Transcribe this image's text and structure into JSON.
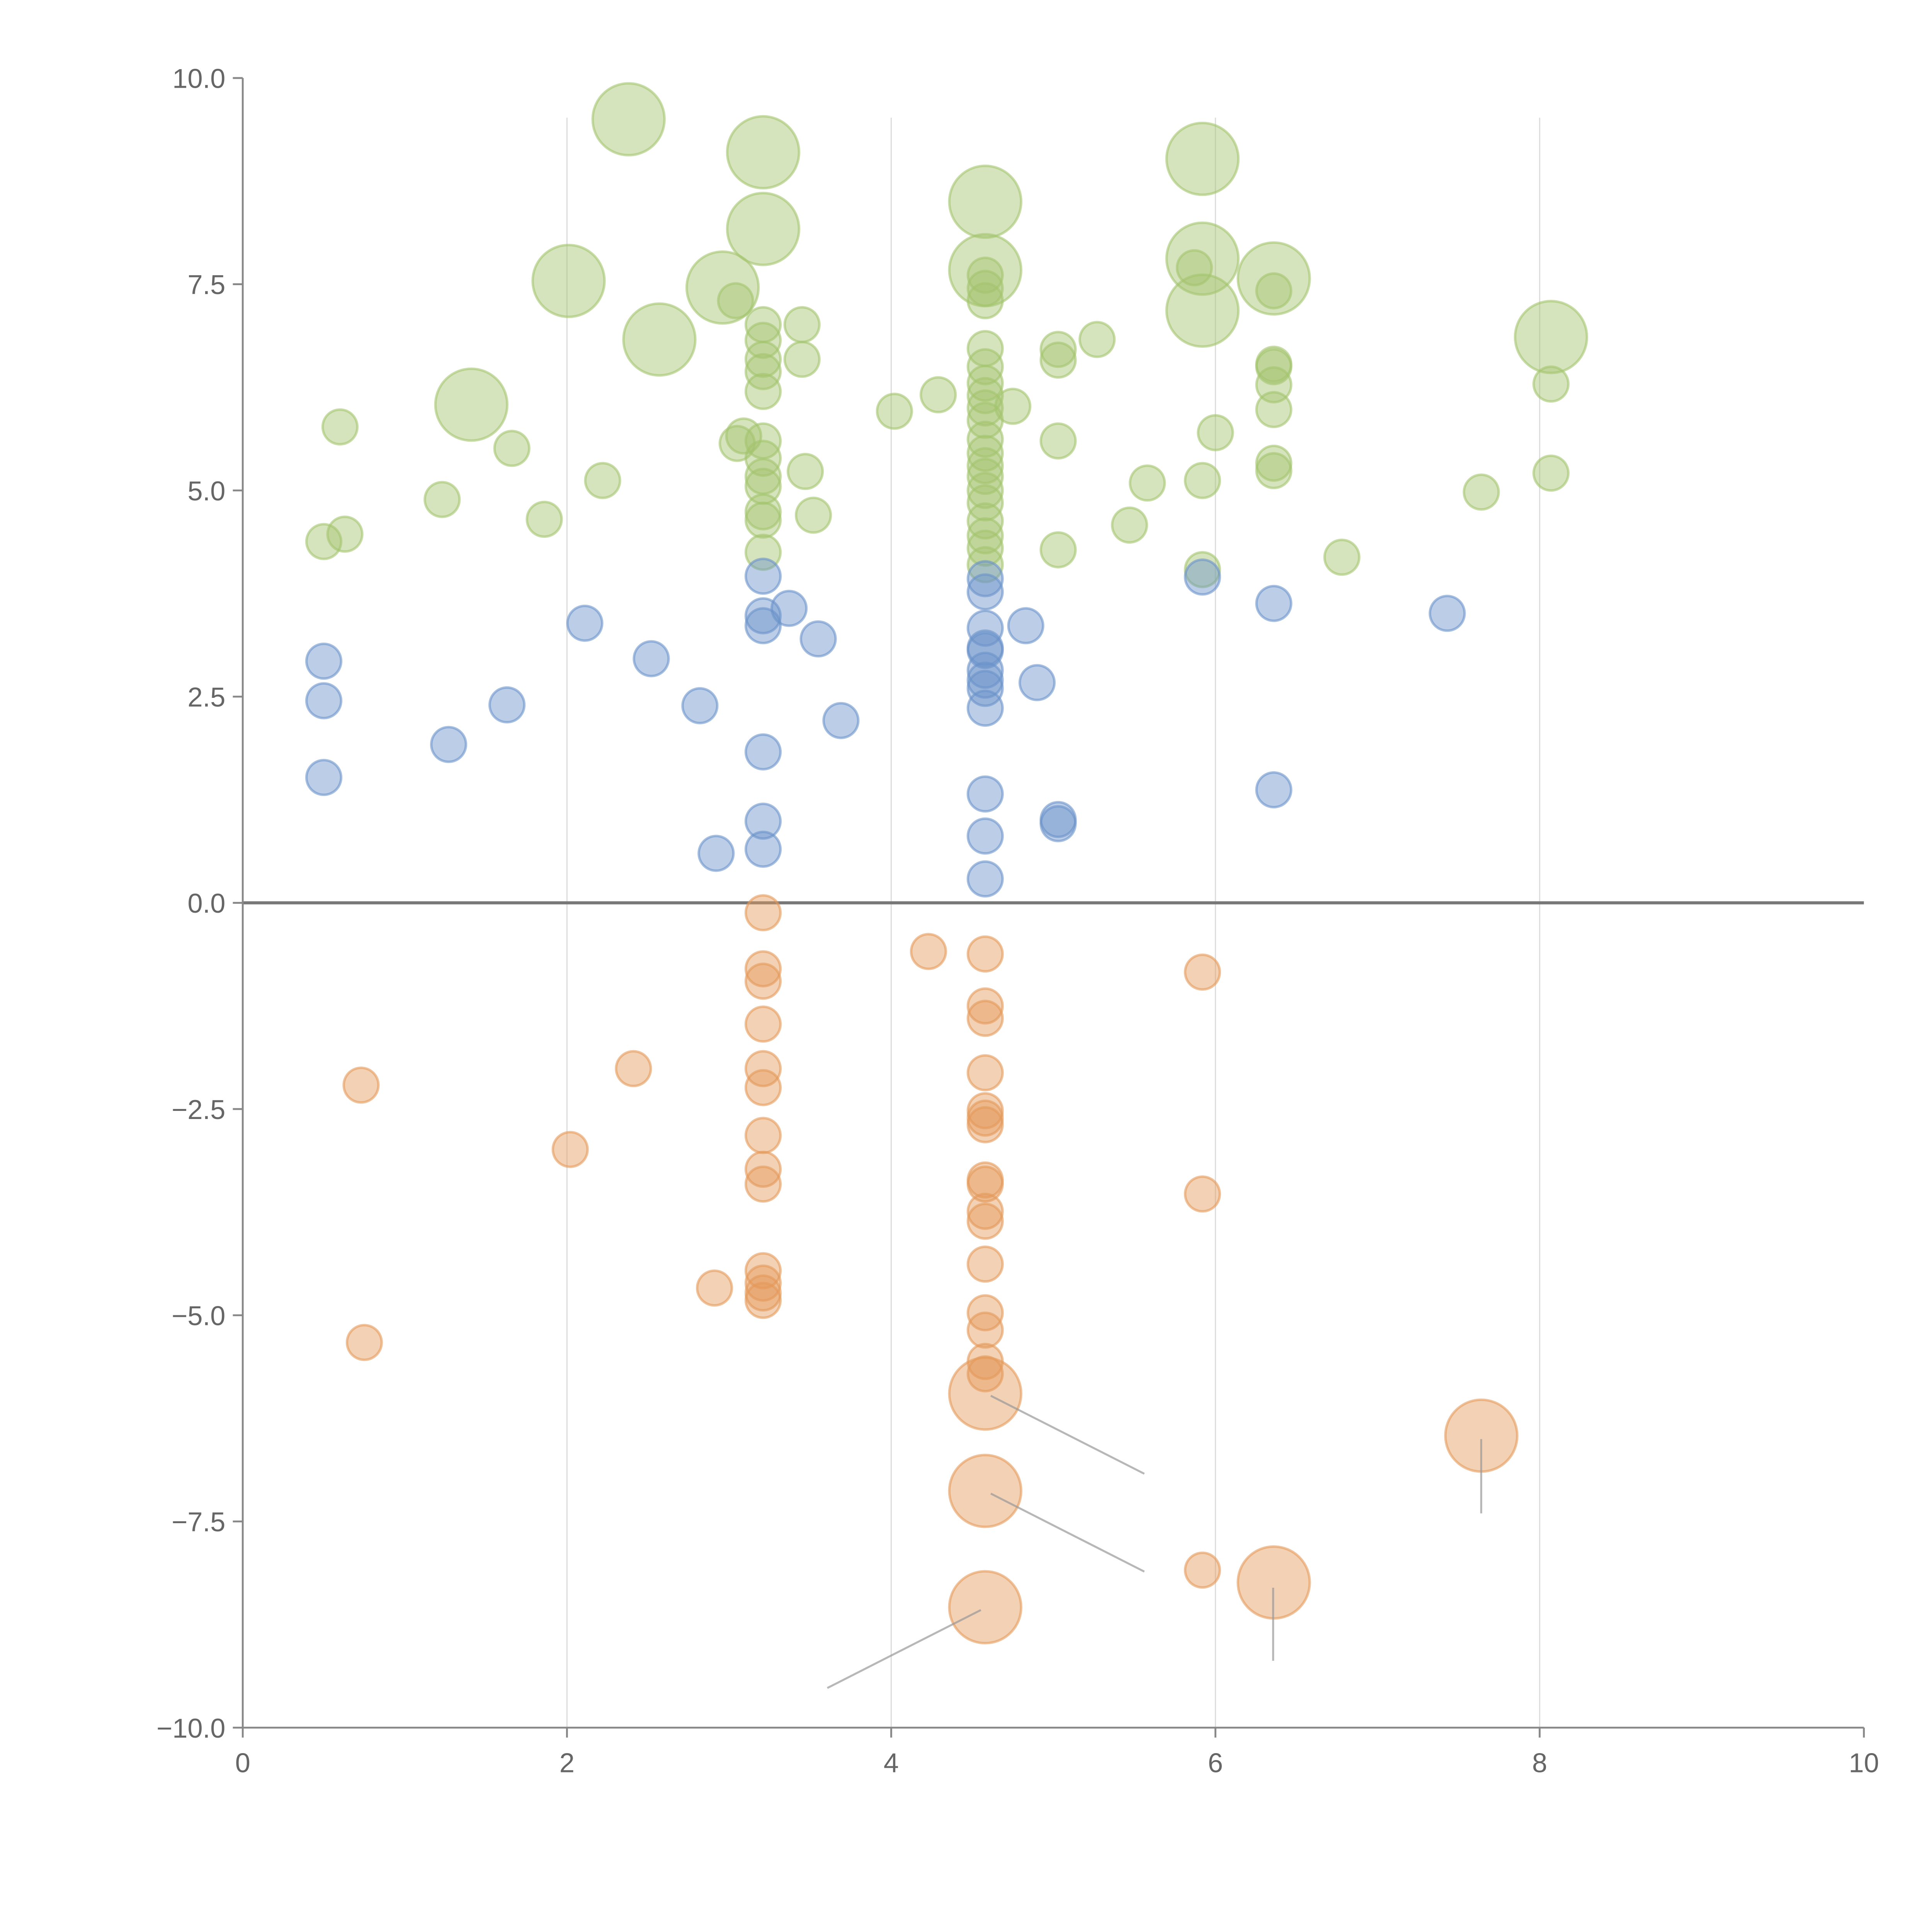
{
  "chart_data": {
    "type": "scatter",
    "title": "",
    "xlabel": "",
    "ylabel": "",
    "xlim": [
      0,
      10
    ],
    "ylim": [
      -10,
      10
    ],
    "x_ticks": [
      0,
      2,
      4,
      6,
      8,
      10
    ],
    "x_tick_labels": [
      "0",
      "2",
      "4",
      "6",
      "8",
      "10"
    ],
    "y_ticks": [
      10,
      7.5,
      5,
      2.5,
      0,
      -2.5,
      -5,
      -7.5,
      -10
    ],
    "y_tick_labels": [
      "10.0",
      "7.5",
      "5.0",
      "2.5",
      "0.0",
      "−2.5",
      "−5.0",
      "−7.5",
      "−10.0"
    ],
    "grid": "vertical",
    "legend": "none",
    "colors": {
      "green": "#a3c46e",
      "blue": "#6b93c9",
      "orange": "#e5995a",
      "zero_line": "#777777",
      "axis": "#888888",
      "grid": "#dddddd"
    },
    "series": [
      {
        "name": "green",
        "color": "#a3c46e",
        "points": [
          [
            0.6,
            5.77,
            1
          ],
          [
            0.5,
            4.38,
            1
          ],
          [
            0.63,
            4.47,
            1
          ],
          [
            1.23,
            4.89,
            1
          ],
          [
            1.66,
            5.51,
            1
          ],
          [
            1.86,
            4.65,
            1
          ],
          [
            2.22,
            5.12,
            1
          ],
          [
            3.05,
            5.57,
            1
          ],
          [
            3.09,
            5.66,
            1
          ],
          [
            3.21,
            7.01,
            1
          ],
          [
            3.21,
            6.82,
            1
          ],
          [
            3.21,
            6.59,
            1
          ],
          [
            3.21,
            6.44,
            1
          ],
          [
            3.21,
            6.2,
            1
          ],
          [
            3.21,
            5.6,
            1
          ],
          [
            3.21,
            5.39,
            1
          ],
          [
            3.21,
            5.17,
            1
          ],
          [
            3.21,
            5.05,
            1
          ],
          [
            3.21,
            4.74,
            1
          ],
          [
            3.21,
            4.64,
            1
          ],
          [
            3.21,
            4.25,
            1
          ],
          [
            3.45,
            7.01,
            1
          ],
          [
            3.45,
            6.59,
            1
          ],
          [
            3.47,
            5.23,
            1
          ],
          [
            3.52,
            4.7,
            1
          ],
          [
            3.04,
            7.3,
            1
          ],
          [
            4.02,
            5.96,
            1
          ],
          [
            4.29,
            6.16,
            1
          ],
          [
            4.58,
            7.61,
            1
          ],
          [
            4.58,
            7.45,
            1
          ],
          [
            4.58,
            7.3,
            1
          ],
          [
            4.58,
            6.72,
            1
          ],
          [
            4.58,
            6.5,
            1
          ],
          [
            4.58,
            6.3,
            1
          ],
          [
            4.58,
            6.15,
            1
          ],
          [
            4.58,
            6.0,
            1
          ],
          [
            4.58,
            5.85,
            1
          ],
          [
            4.58,
            5.62,
            1
          ],
          [
            4.58,
            5.45,
            1
          ],
          [
            4.58,
            5.3,
            1
          ],
          [
            4.58,
            5.17,
            1
          ],
          [
            4.58,
            5.0,
            1
          ],
          [
            4.58,
            4.85,
            1
          ],
          [
            4.58,
            4.63,
            1
          ],
          [
            4.58,
            4.45,
            1
          ],
          [
            4.58,
            4.3,
            1
          ],
          [
            4.58,
            4.1,
            1
          ],
          [
            4.75,
            6.02,
            1
          ],
          [
            5.03,
            6.71,
            1
          ],
          [
            5.03,
            6.58,
            1
          ],
          [
            5.03,
            5.6,
            1
          ],
          [
            5.03,
            4.28,
            1
          ],
          [
            5.27,
            6.83,
            1
          ],
          [
            5.47,
            4.58,
            1
          ],
          [
            5.58,
            5.09,
            1
          ],
          [
            5.87,
            7.7,
            1
          ],
          [
            5.92,
            5.12,
            1
          ],
          [
            5.92,
            4.04,
            1
          ],
          [
            6.0,
            5.7,
            1
          ],
          [
            6.36,
            7.42,
            1
          ],
          [
            6.36,
            6.53,
            1
          ],
          [
            6.36,
            6.5,
            1
          ],
          [
            6.36,
            6.28,
            1
          ],
          [
            6.36,
            5.98,
            1
          ],
          [
            6.36,
            5.33,
            1
          ],
          [
            6.36,
            5.24,
            1
          ],
          [
            6.78,
            4.19,
            1
          ],
          [
            7.64,
            4.98,
            1
          ],
          [
            8.07,
            6.29,
            1
          ],
          [
            8.07,
            5.21,
            1
          ],
          [
            2.38,
            9.5,
            2
          ],
          [
            3.21,
            9.1,
            2
          ],
          [
            3.21,
            8.17,
            2
          ],
          [
            2.01,
            7.54,
            2
          ],
          [
            2.96,
            7.46,
            2
          ],
          [
            2.57,
            6.83,
            2
          ],
          [
            1.41,
            6.04,
            2
          ],
          [
            4.58,
            8.5,
            2
          ],
          [
            4.58,
            7.67,
            2
          ],
          [
            5.92,
            9.02,
            2
          ],
          [
            5.92,
            7.81,
            2
          ],
          [
            5.92,
            7.18,
            2
          ],
          [
            6.36,
            7.57,
            2
          ],
          [
            8.07,
            6.86,
            2
          ]
        ]
      },
      {
        "name": "blue",
        "color": "#6b93c9",
        "points": [
          [
            0.5,
            2.93,
            1
          ],
          [
            0.5,
            2.45,
            1
          ],
          [
            0.5,
            1.52,
            1
          ],
          [
            1.27,
            1.92,
            1
          ],
          [
            1.63,
            2.4,
            1
          ],
          [
            2.11,
            3.39,
            1
          ],
          [
            2.52,
            2.96,
            1
          ],
          [
            2.82,
            2.39,
            1
          ],
          [
            2.92,
            0.6,
            1
          ],
          [
            3.21,
            3.96,
            1
          ],
          [
            3.21,
            3.48,
            1
          ],
          [
            3.21,
            3.36,
            1
          ],
          [
            3.21,
            1.83,
            1
          ],
          [
            3.21,
            0.99,
            1
          ],
          [
            3.21,
            0.65,
            1
          ],
          [
            3.37,
            3.57,
            1
          ],
          [
            3.55,
            3.2,
            1
          ],
          [
            3.69,
            2.21,
            1
          ],
          [
            4.58,
            3.93,
            1
          ],
          [
            4.58,
            3.77,
            1
          ],
          [
            4.58,
            3.33,
            1
          ],
          [
            4.58,
            3.09,
            1
          ],
          [
            4.58,
            3.06,
            1
          ],
          [
            4.58,
            2.82,
            1
          ],
          [
            4.58,
            2.7,
            1
          ],
          [
            4.58,
            2.6,
            1
          ],
          [
            4.58,
            2.36,
            1
          ],
          [
            4.58,
            1.32,
            1
          ],
          [
            4.58,
            0.81,
            1
          ],
          [
            4.58,
            0.29,
            1
          ],
          [
            4.83,
            3.36,
            1
          ],
          [
            4.9,
            2.67,
            1
          ],
          [
            5.03,
            1.01,
            1
          ],
          [
            5.03,
            0.96,
            1
          ],
          [
            5.92,
            3.95,
            1
          ],
          [
            6.36,
            3.63,
            1
          ],
          [
            6.36,
            1.37,
            1
          ],
          [
            7.43,
            3.51,
            1
          ]
        ]
      },
      {
        "name": "orange",
        "color": "#e5995a",
        "points": [
          [
            0.73,
            -2.21,
            1
          ],
          [
            0.75,
            -5.33,
            1
          ],
          [
            2.02,
            -2.99,
            1
          ],
          [
            2.41,
            -2.01,
            1
          ],
          [
            2.91,
            -4.67,
            1
          ],
          [
            3.21,
            -0.12,
            1
          ],
          [
            3.21,
            -0.8,
            1
          ],
          [
            3.21,
            -0.95,
            1
          ],
          [
            3.21,
            -1.47,
            1
          ],
          [
            3.21,
            -2.01,
            1
          ],
          [
            3.21,
            -2.24,
            1
          ],
          [
            3.21,
            -2.82,
            1
          ],
          [
            3.21,
            -3.23,
            1
          ],
          [
            3.21,
            -3.41,
            1
          ],
          [
            3.21,
            -4.46,
            1
          ],
          [
            3.21,
            -4.61,
            1
          ],
          [
            3.21,
            -4.73,
            1
          ],
          [
            3.21,
            -4.82,
            1
          ],
          [
            4.23,
            -0.59,
            1
          ],
          [
            4.58,
            -0.62,
            1
          ],
          [
            4.58,
            -1.25,
            1
          ],
          [
            4.58,
            -1.4,
            1
          ],
          [
            4.58,
            -2.06,
            1
          ],
          [
            4.58,
            -2.52,
            1
          ],
          [
            4.58,
            -2.61,
            1
          ],
          [
            4.58,
            -2.69,
            1
          ],
          [
            4.58,
            -3.36,
            1
          ],
          [
            4.58,
            -3.41,
            1
          ],
          [
            4.58,
            -3.74,
            1
          ],
          [
            4.58,
            -3.86,
            1
          ],
          [
            4.58,
            -4.38,
            1
          ],
          [
            4.58,
            -4.97,
            1
          ],
          [
            4.58,
            -5.18,
            1
          ],
          [
            4.58,
            -5.56,
            1
          ],
          [
            4.58,
            -5.71,
            1
          ],
          [
            5.92,
            -0.84,
            1
          ],
          [
            5.92,
            -3.53,
            1
          ],
          [
            5.92,
            -8.09,
            1
          ],
          [
            4.58,
            -5.95,
            2
          ],
          [
            4.58,
            -7.13,
            2
          ],
          [
            4.58,
            -8.54,
            2
          ],
          [
            6.36,
            -8.24,
            2
          ],
          [
            7.64,
            -6.46,
            2
          ]
        ]
      }
    ]
  }
}
